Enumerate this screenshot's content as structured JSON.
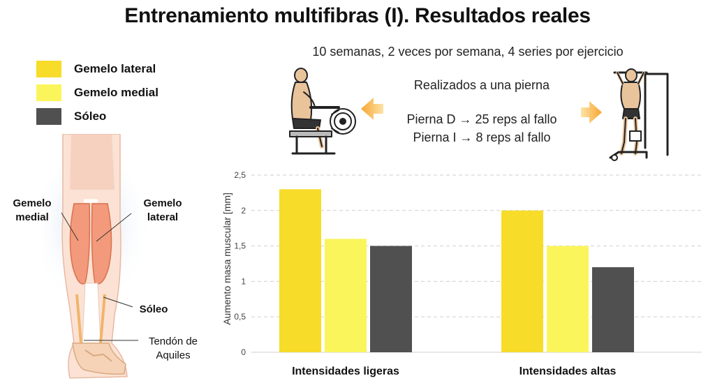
{
  "title": "Entrenamiento multifibras (I). Resultados reales",
  "subtitle": "10 semanas, 2 veces por semana, 4 series por ejercicio",
  "protocol": {
    "line1": "Realizados a una pierna",
    "line2": "Pierna D → 25 reps al fallo",
    "line3": "Pierna I → 8 reps al fallo"
  },
  "legend": [
    {
      "label": "Gemelo lateral",
      "color": "#f7dc2a"
    },
    {
      "label": "Gemelo medial",
      "color": "#fbf55c"
    },
    {
      "label": "Sóleo",
      "color": "#505050"
    }
  ],
  "anatomy": {
    "gemelo_medial": "Gemelo medial",
    "gemelo_lateral": "Gemelo lateral",
    "soleo": "Sóleo",
    "tendon": "Tendón de Aquiles"
  },
  "icons": {
    "left_exercise": "seated-calf-raise-icon",
    "right_exercise": "standing-calf-raise-icon",
    "arrow_left": "arrow-left-icon",
    "arrow_right": "arrow-right-icon"
  },
  "chart_data": {
    "type": "bar",
    "categories": [
      "Intensidades ligeras",
      "Intensidades altas"
    ],
    "series": [
      {
        "name": "Gemelo lateral",
        "values": [
          2.3,
          2.0
        ],
        "color": "#f7dc2a"
      },
      {
        "name": "Gemelo medial",
        "values": [
          1.6,
          1.5
        ],
        "color": "#fbf55c"
      },
      {
        "name": "Sóleo",
        "values": [
          1.5,
          1.2
        ],
        "color": "#505050"
      }
    ],
    "ylabel": "Aumento masa muscular [mm]",
    "ylim": [
      0,
      2.5
    ],
    "yticks": [
      "0",
      "0,5",
      "1",
      "1,5",
      "2",
      "2,5"
    ],
    "grid": true
  }
}
